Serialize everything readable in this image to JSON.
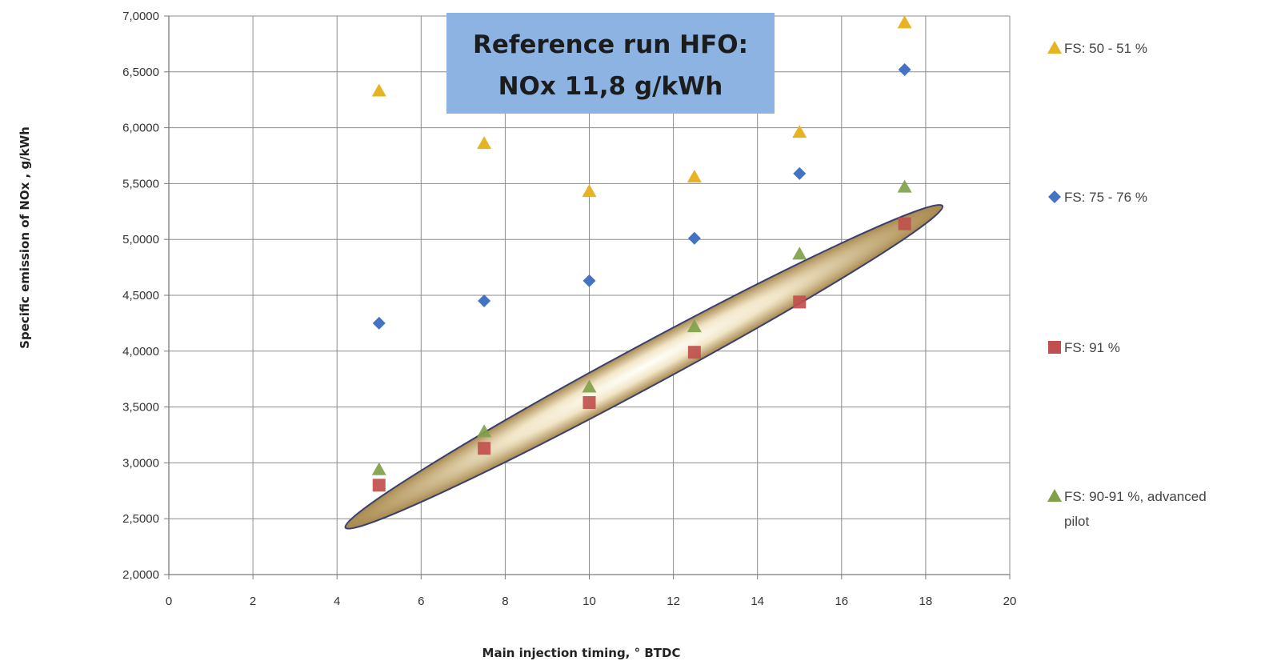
{
  "chart_data": {
    "type": "scatter",
    "title": "",
    "xlabel": "Main injection timing, ° BTDC",
    "ylabel": "Specific emission of NOx ,  g/kWh",
    "xlim": [
      0,
      20
    ],
    "ylim": [
      2.0,
      7.0
    ],
    "xticks": [
      0,
      2,
      4,
      6,
      8,
      10,
      12,
      14,
      16,
      18,
      20
    ],
    "yticks": [
      2.0,
      2.5,
      3.0,
      3.5,
      4.0,
      4.5,
      5.0,
      5.5,
      6.0,
      6.5,
      7.0
    ],
    "y_tick_labels": [
      "2,0000",
      "2,5000",
      "3,0000",
      "3,5000",
      "4,0000",
      "4,5000",
      "5,0000",
      "5,5000",
      "6,0000",
      "6,5000",
      "7,0000"
    ],
    "grid": true,
    "legend_position": "right",
    "series": [
      {
        "name": "FS: 50 - 51 %",
        "marker": "triangle",
        "color": "#E6B422",
        "points": [
          [
            5,
            6.33
          ],
          [
            7.5,
            5.86
          ],
          [
            10,
            5.43
          ],
          [
            12.5,
            5.56
          ],
          [
            15,
            5.96
          ],
          [
            17.5,
            6.94
          ]
        ]
      },
      {
        "name": "FS: 75 - 76 %",
        "marker": "diamond",
        "color": "#4472C4",
        "points": [
          [
            5,
            4.25
          ],
          [
            7.5,
            4.45
          ],
          [
            10,
            4.63
          ],
          [
            12.5,
            5.01
          ],
          [
            15,
            5.59
          ],
          [
            17.5,
            6.52
          ]
        ]
      },
      {
        "name": "FS: 91 %",
        "marker": "square",
        "color": "#C0504D",
        "points": [
          [
            5,
            2.8
          ],
          [
            7.5,
            3.13
          ],
          [
            10,
            3.54
          ],
          [
            12.5,
            3.99
          ],
          [
            15,
            4.44
          ],
          [
            17.5,
            5.14
          ]
        ]
      },
      {
        "name": "FS: 90-91 %, advanced pilot",
        "name_lines": [
          "FS: 90-91 %, advanced",
          "pilot"
        ],
        "marker": "triangle",
        "color": "#7FA14A",
        "points": [
          [
            5,
            2.94
          ],
          [
            7.5,
            3.28
          ],
          [
            10,
            3.68
          ],
          [
            12.5,
            4.22
          ],
          [
            15,
            4.87
          ],
          [
            17.5,
            5.47
          ]
        ]
      }
    ],
    "annotations": [
      {
        "kind": "text-box",
        "lines": [
          "Reference run HFO:",
          "NOx 11,8 g/kWh"
        ],
        "background": "#8DB3E2"
      },
      {
        "kind": "ellipse-highlight",
        "from": [
          4.2,
          2.42
        ],
        "to": [
          18.4,
          5.3
        ]
      }
    ]
  }
}
